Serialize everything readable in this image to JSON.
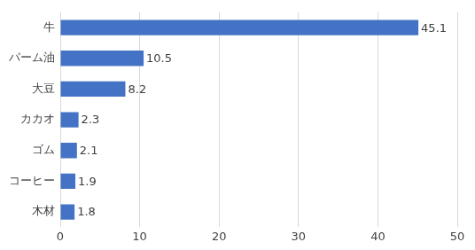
{
  "chart_data": {
    "type": "bar",
    "orientation": "horizontal",
    "categories": [
      "牛",
      "パーム油",
      "大豆",
      "カカオ",
      "ゴム",
      "コーヒー",
      "木材"
    ],
    "values": [
      45.1,
      10.5,
      8.2,
      2.3,
      2.1,
      1.9,
      1.8
    ],
    "color": "#4472c4",
    "xlim": [
      0,
      50
    ],
    "xticks": [
      0,
      10,
      20,
      30,
      40,
      50
    ],
    "grid": true,
    "data_labels": true
  }
}
